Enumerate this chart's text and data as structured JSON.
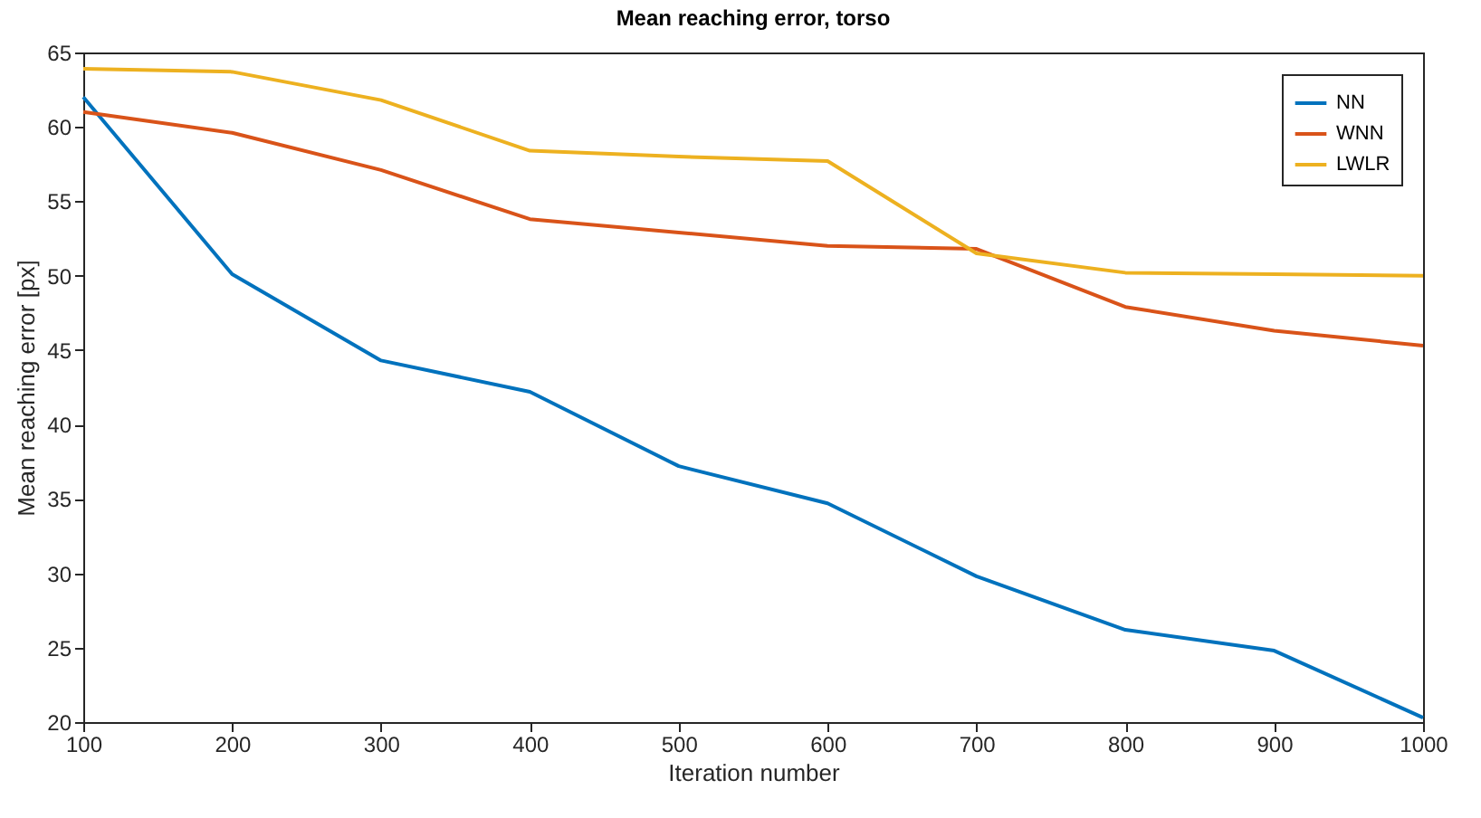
{
  "chart_data": {
    "type": "line",
    "title": "Mean reaching error, torso",
    "xlabel": "Iteration number",
    "ylabel": "Mean reaching error [px]",
    "x": [
      100,
      200,
      300,
      400,
      500,
      600,
      700,
      800,
      900,
      1000
    ],
    "series": [
      {
        "name": "NN",
        "color": "#0072bd",
        "values": [
          62,
          50.1,
          44.3,
          42.2,
          37.2,
          34.7,
          29.8,
          26.2,
          24.8,
          20.3
        ]
      },
      {
        "name": "WNN",
        "color": "#d95319",
        "values": [
          61,
          59.6,
          57.1,
          53.8,
          52.9,
          52.0,
          51.8,
          47.9,
          46.3,
          45.3
        ]
      },
      {
        "name": "LWLR",
        "color": "#edb120",
        "values": [
          63.9,
          63.7,
          61.8,
          58.4,
          58.0,
          57.7,
          51.5,
          50.2,
          50.1,
          50.0
        ]
      }
    ],
    "xlim": [
      100,
      1000
    ],
    "xticks": [
      100,
      200,
      300,
      400,
      500,
      600,
      700,
      800,
      900,
      1000
    ],
    "ylim": [
      20,
      65
    ],
    "yticks": [
      20,
      25,
      30,
      35,
      40,
      45,
      50,
      55,
      60,
      65
    ],
    "legend": "top right",
    "grid": false,
    "marker": "none",
    "line_style": "solid"
  }
}
